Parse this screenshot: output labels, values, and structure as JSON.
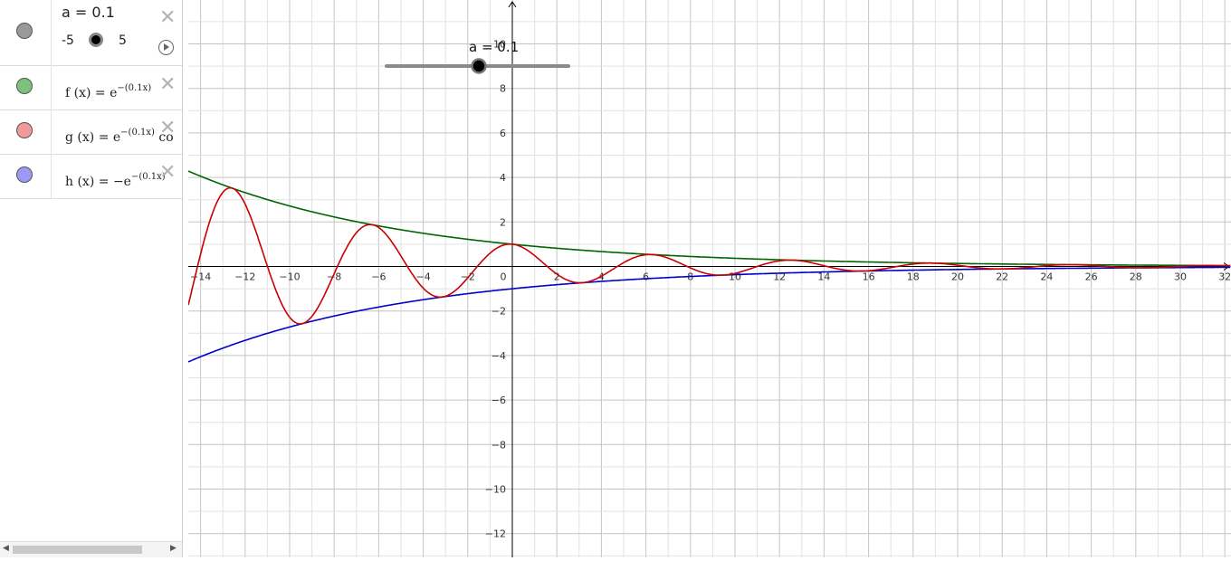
{
  "algebra": {
    "slider": {
      "label": "a = 0.1",
      "min": "-5",
      "max": "5",
      "value": 0.1,
      "color": "#999999"
    },
    "items": [
      {
        "name": "f (x)",
        "eq": "=",
        "base": "e",
        "exp": "−(0.1x)",
        "color": "#7cc17c",
        "trail": ""
      },
      {
        "name": "g (x)",
        "eq": "=",
        "base": "e",
        "exp": "−(0.1x)",
        "color": "#f09a9a",
        "trail": "co"
      },
      {
        "name": "h (x)",
        "eq": "=",
        "base": "−e",
        "exp": "−(0.1x)",
        "color": "#9a9af5",
        "trail": ""
      }
    ]
  },
  "graphics": {
    "slider_label": "a = 0.1",
    "x_ticks": [
      "−14",
      "−12",
      "−10",
      "−8",
      "−6",
      "−4",
      "−2",
      "0",
      "2",
      "4",
      "6",
      "8",
      "10",
      "12",
      "14",
      "16",
      "18",
      "20",
      "22",
      "24",
      "26",
      "28",
      "30",
      "32"
    ],
    "y_ticks": [
      "8",
      "6",
      "4",
      "2",
      "−2",
      "−4",
      "−6",
      "−8",
      "−10",
      "−12"
    ],
    "y_top_label": "10",
    "curve_colors": {
      "f": "#006400",
      "g": "#cc0000",
      "h": "#0000cc"
    }
  }
}
